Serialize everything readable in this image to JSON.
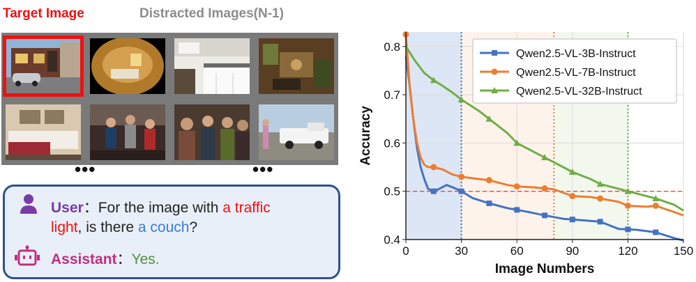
{
  "header": {
    "target": "Target Image",
    "distracted": "Distracted Images(N-1)"
  },
  "thumbnails": [
    {
      "name": "street-corner",
      "selected": true
    },
    {
      "name": "fisheye-room",
      "selected": false
    },
    {
      "name": "kitchen",
      "selected": false
    },
    {
      "name": "living-room-aerial",
      "selected": false
    },
    {
      "name": "bedroom",
      "selected": false
    },
    {
      "name": "party-dancing",
      "selected": false
    },
    {
      "name": "crowd-gathering",
      "selected": false
    },
    {
      "name": "pickup-truck",
      "selected": false
    }
  ],
  "ellipsis": "•••",
  "dialog": {
    "user_label": "User",
    "assistant_label": "Assistant",
    "colon": "：",
    "q_part1": "For the image with ",
    "q_highlight1": "a traffic",
    "q_highlight1b": "light",
    "q_part2": ", is there ",
    "q_highlight2": "a couch",
    "q_part3": "?",
    "answer": "Yes.",
    "colors": {
      "user": "#7a3aa8",
      "assistant": "#c0307f",
      "red": "#ee1111",
      "blue": "#3a7ecf",
      "green": "#4f8f3a"
    }
  },
  "chart_data": {
    "type": "line",
    "xlabel": "Image Numbers",
    "ylabel": "Accuracy",
    "xlim": [
      0,
      150
    ],
    "ylim": [
      0.4,
      0.83
    ],
    "xticks": [
      0,
      30,
      60,
      90,
      120,
      150
    ],
    "yticks": [
      0.4,
      0.5,
      0.6,
      0.7,
      0.8
    ],
    "grid": true,
    "legend_position": "top-right",
    "shaded_region": {
      "x": [
        0,
        30
      ],
      "color": "#dde6f4"
    },
    "hline": {
      "y": 0.5,
      "color": "#e05555",
      "style": "dashed"
    },
    "series": [
      {
        "name": "Qwen2.5-VL-3B-Instruct",
        "color": "#4472c4",
        "marker": "square",
        "x": [
          0,
          2,
          4,
          6,
          8,
          10,
          12,
          15,
          18,
          22,
          26,
          30,
          36,
          45,
          55,
          65,
          75,
          85,
          95,
          105,
          115,
          125,
          135,
          145,
          150
        ],
        "y": [
          0.78,
          0.72,
          0.65,
          0.59,
          0.55,
          0.525,
          0.505,
          0.5,
          0.505,
          0.513,
          0.507,
          0.5,
          0.486,
          0.475,
          0.465,
          0.458,
          0.45,
          0.443,
          0.44,
          0.437,
          0.422,
          0.42,
          0.415,
          0.403,
          0.398
        ],
        "markers_x": [
          15,
          30,
          45,
          60,
          75,
          90,
          105,
          120,
          135
        ]
      },
      {
        "name": "Qwen2.5-VL-7B-Instruct",
        "color": "#ed7d31",
        "marker": "circle",
        "x": [
          0,
          2,
          4,
          6,
          8,
          10,
          12,
          15,
          20,
          25,
          30,
          40,
          45,
          55,
          60,
          70,
          80,
          90,
          100,
          105,
          115,
          120,
          130,
          135,
          145,
          150
        ],
        "y": [
          0.825,
          0.72,
          0.65,
          0.6,
          0.57,
          0.555,
          0.55,
          0.55,
          0.545,
          0.535,
          0.53,
          0.525,
          0.523,
          0.513,
          0.51,
          0.508,
          0.504,
          0.49,
          0.488,
          0.485,
          0.478,
          0.47,
          0.468,
          0.47,
          0.457,
          0.45
        ],
        "markers_x": [
          0,
          15,
          30,
          45,
          60,
          75,
          90,
          105,
          120,
          135
        ]
      },
      {
        "name": "Qwen2.5-VL-32B-Instruct",
        "color": "#70ad47",
        "marker": "triangle",
        "x": [
          0,
          5,
          10,
          15,
          20,
          25,
          30,
          40,
          45,
          55,
          60,
          70,
          75,
          85,
          90,
          100,
          105,
          115,
          120,
          130,
          135,
          145,
          150
        ],
        "y": [
          0.8,
          0.77,
          0.745,
          0.73,
          0.718,
          0.705,
          0.69,
          0.665,
          0.65,
          0.62,
          0.6,
          0.58,
          0.57,
          0.55,
          0.54,
          0.525,
          0.515,
          0.505,
          0.5,
          0.49,
          0.485,
          0.472,
          0.46
        ],
        "markers_x": [
          15,
          30,
          45,
          60,
          75,
          90,
          105,
          120,
          135
        ]
      }
    ],
    "vlines": [
      {
        "x": 30,
        "color": "#4472c4"
      },
      {
        "x": 80,
        "color": "#ed7d31"
      },
      {
        "x": 120,
        "color": "#70ad47"
      }
    ]
  }
}
